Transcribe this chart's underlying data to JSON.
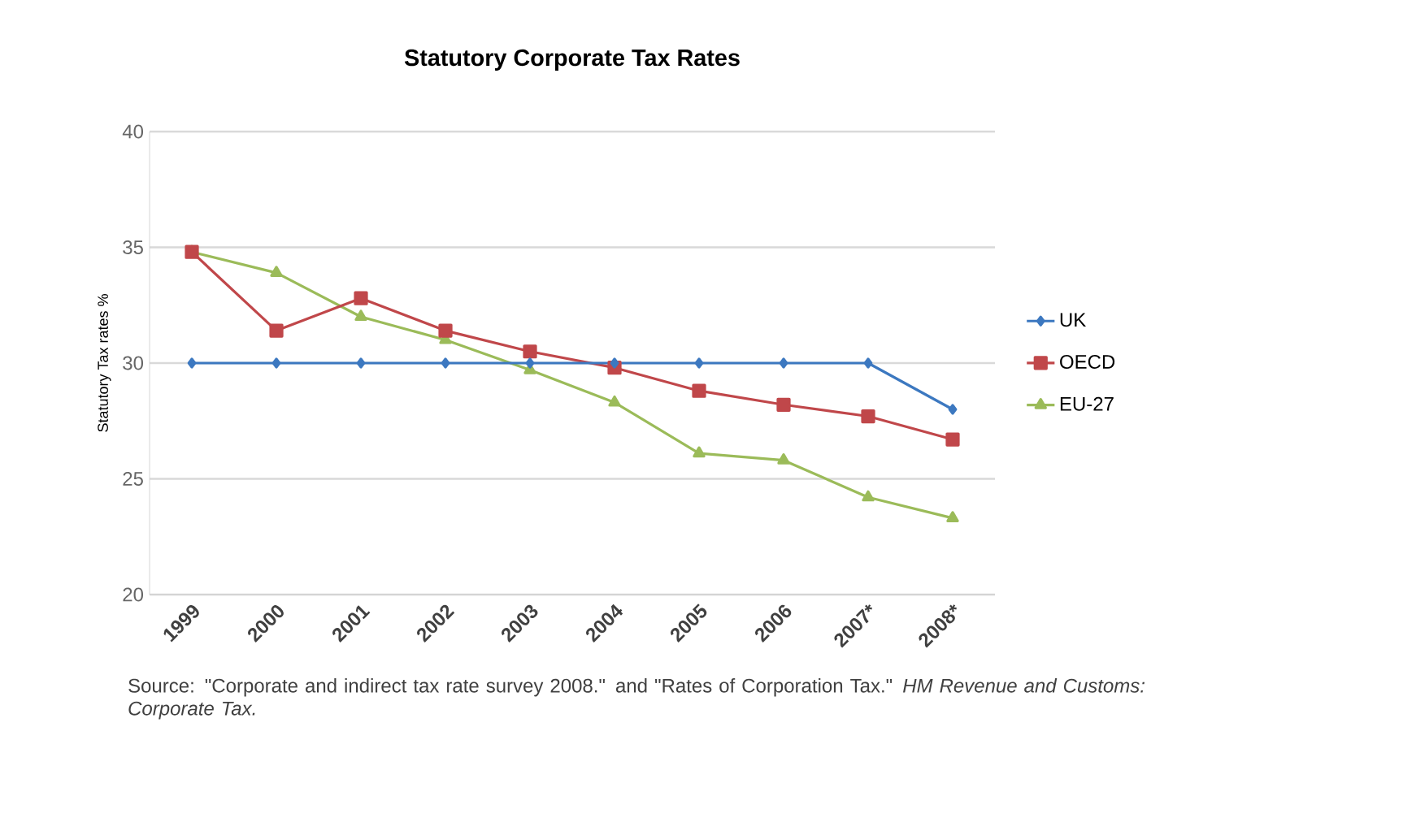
{
  "chart_data": {
    "type": "line",
    "title": "Statutory Corporate Tax Rates",
    "ylabel": "Statutory Tax rates %",
    "categories": [
      "1999",
      "2000",
      "2001",
      "2002",
      "2003",
      "2004",
      "2005",
      "2006",
      "2007*",
      "2008*"
    ],
    "series": [
      {
        "name": "UK",
        "color": "#3c78c0",
        "marker": "diamond",
        "values": [
          30,
          30,
          30,
          30,
          30,
          30,
          30,
          30,
          30,
          28
        ]
      },
      {
        "name": "OECD",
        "color": "#c0474a",
        "marker": "square",
        "values": [
          34.8,
          31.4,
          32.8,
          31.4,
          30.5,
          29.8,
          28.8,
          28.2,
          27.7,
          26.7
        ]
      },
      {
        "name": "EU-27",
        "color": "#9bbb59",
        "marker": "triangle",
        "values": [
          34.8,
          33.9,
          32.0,
          31.0,
          29.7,
          28.3,
          26.1,
          25.8,
          24.2,
          23.3
        ]
      }
    ],
    "ylim": [
      20,
      40
    ],
    "yticks": [
      20,
      25,
      30,
      35,
      40
    ],
    "grid": "y",
    "legend": "right",
    "annotations": [
      "Source: \"Corporate and indirect tax rate survey 2008.\" and \"Rates of Corporation Tax.\" *HM Revenue and Customs: Corporate Tax.*"
    ]
  }
}
